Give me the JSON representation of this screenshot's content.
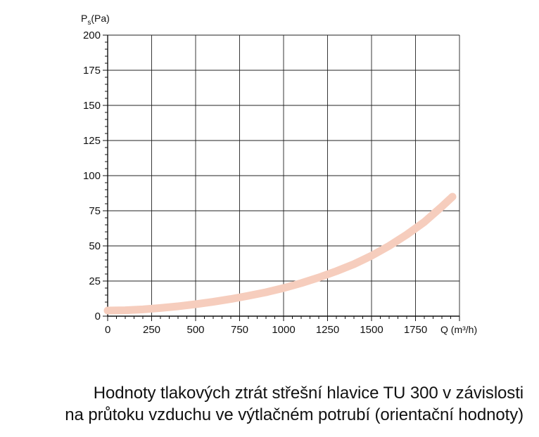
{
  "chart_data": {
    "type": "line",
    "ylabel": {
      "main": "P",
      "sub": "s",
      "unit": "(Pa)"
    },
    "xlabel": "Q (m³/h)",
    "xlim": [
      0,
      2000
    ],
    "ylim": [
      0,
      200
    ],
    "x_ticks": [
      "0",
      "250",
      "500",
      "750",
      "1000",
      "1250",
      "1500",
      "1750"
    ],
    "y_ticks": [
      "0",
      "25",
      "50",
      "75",
      "100",
      "125",
      "150",
      "175",
      "200"
    ],
    "grid": true,
    "series": [
      {
        "color": "#f6cdbd",
        "x": [
          0,
          100,
          200,
          300,
          400,
          500,
          600,
          700,
          800,
          900,
          1000,
          1100,
          1200,
          1300,
          1400,
          1500,
          1600,
          1700,
          1800,
          1900,
          1960
        ],
        "y": [
          4,
          4.2,
          4.8,
          5.8,
          7,
          8.5,
          10.2,
          12.2,
          14.5,
          17,
          20,
          23.5,
          27.5,
          32,
          37,
          43,
          50,
          58,
          67,
          78,
          85
        ]
      }
    ]
  },
  "caption": {
    "line1": "Hodnoty tlakových ztrát střešní hlavice TU 300 v závislosti",
    "line2": "na průtoku vzduchu ve výtlačném potrubí (orientační hodnoty)"
  }
}
